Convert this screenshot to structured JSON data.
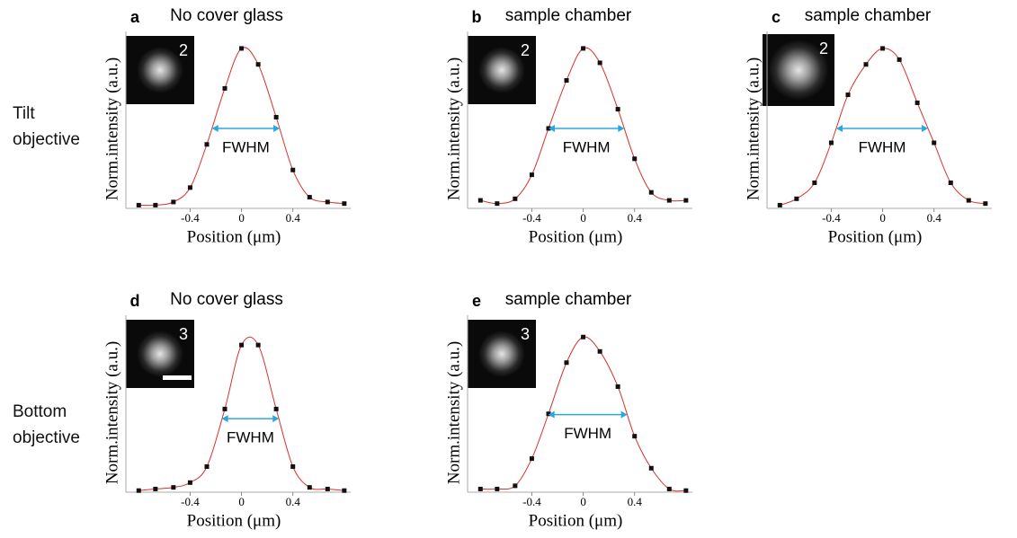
{
  "row_labels": [
    "Tilt objective",
    "Bottom objective"
  ],
  "chart_data": [
    {
      "type": "scatter",
      "panel": "a",
      "title": "No cover glass",
      "inset_label": "2",
      "annotation": "FWHM",
      "x_label": "Position (μm)",
      "y_label": "Norm.intensity (a.u.)",
      "color": "#111111",
      "line_color": "#d9302a",
      "arrow_color": "#2aa7df",
      "xlim": [
        -0.9,
        0.85
      ],
      "ylim": [
        0,
        1.05
      ],
      "xticks": [
        -0.4,
        0,
        0.4
      ],
      "x": [
        -0.8,
        -0.67,
        -0.53,
        -0.4,
        -0.27,
        -0.13,
        0,
        0.13,
        0.27,
        0.4,
        0.53,
        0.67,
        0.8
      ],
      "values": [
        0.02,
        0.02,
        0.04,
        0.13,
        0.4,
        0.75,
        1.0,
        0.9,
        0.57,
        0.24,
        0.07,
        0.04,
        0.03
      ]
    },
    {
      "type": "scatter",
      "panel": "b",
      "title": "sample chamber",
      "inset_label": "2",
      "annotation": "FWHM",
      "x_label": "Position (μm)",
      "y_label": "Norm.intensity (a.u.)",
      "color": "#111111",
      "line_color": "#d9302a",
      "arrow_color": "#2aa7df",
      "xlim": [
        -0.9,
        0.85
      ],
      "ylim": [
        0,
        1.05
      ],
      "xticks": [
        -0.4,
        0,
        0.4
      ],
      "x": [
        -0.8,
        -0.67,
        -0.53,
        -0.4,
        -0.27,
        -0.13,
        0,
        0.13,
        0.27,
        0.4,
        0.53,
        0.67,
        0.8
      ],
      "values": [
        0.05,
        0.03,
        0.06,
        0.21,
        0.5,
        0.8,
        1.0,
        0.91,
        0.62,
        0.31,
        0.1,
        0.05,
        0.05
      ]
    },
    {
      "type": "scatter",
      "panel": "c",
      "title": "sample chamber",
      "inset_label": "2",
      "annotation": "FWHM",
      "x_label": "Position (μm)",
      "y_label": "Norm.intensity (a.u.)",
      "color": "#111111",
      "line_color": "#d9302a",
      "arrow_color": "#2aa7df",
      "xlim": [
        -0.9,
        0.85
      ],
      "ylim": [
        0,
        1.05
      ],
      "xticks": [
        -0.4,
        0,
        0.4
      ],
      "x": [
        -0.8,
        -0.67,
        -0.53,
        -0.4,
        -0.27,
        -0.13,
        0,
        0.13,
        0.27,
        0.4,
        0.53,
        0.67,
        0.8
      ],
      "values": [
        0.02,
        0.06,
        0.16,
        0.41,
        0.71,
        0.9,
        1.0,
        0.93,
        0.66,
        0.41,
        0.16,
        0.05,
        0.03
      ]
    },
    {
      "type": "scatter",
      "panel": "d",
      "title": "No cover glass",
      "inset_label": "3",
      "annotation": "FWHM",
      "x_label": "Position (μm)",
      "y_label": "Norm.intensity (a.u.)",
      "color": "#111111",
      "line_color": "#d9302a",
      "arrow_color": "#2aa7df",
      "xlim": [
        -0.9,
        0.85
      ],
      "ylim": [
        0,
        1.05
      ],
      "xticks": [
        -0.4,
        0,
        0.4
      ],
      "x": [
        -0.8,
        -0.67,
        -0.53,
        -0.4,
        -0.27,
        -0.13,
        0,
        0.13,
        0.27,
        0.4,
        0.53,
        0.67,
        0.8
      ],
      "values": [
        0.01,
        0.02,
        0.03,
        0.06,
        0.16,
        0.52,
        0.92,
        0.92,
        0.52,
        0.16,
        0.03,
        0.02,
        0.01
      ]
    },
    {
      "type": "scatter",
      "panel": "e",
      "title": "sample chamber",
      "inset_label": "3",
      "annotation": "FWHM",
      "x_label": "Position (μm)",
      "y_label": "Norm.intensity (a.u.)",
      "color": "#111111",
      "line_color": "#d9302a",
      "arrow_color": "#2aa7df",
      "xlim": [
        -0.9,
        0.85
      ],
      "ylim": [
        0,
        1.05
      ],
      "xticks": [
        -0.4,
        0,
        0.4
      ],
      "x": [
        -0.8,
        -0.67,
        -0.53,
        -0.4,
        -0.27,
        -0.13,
        0,
        0.13,
        0.27,
        0.4,
        0.53,
        0.67,
        0.8
      ],
      "values": [
        0.02,
        0.02,
        0.04,
        0.21,
        0.49,
        0.81,
        0.97,
        0.88,
        0.66,
        0.35,
        0.15,
        0.02,
        0.01
      ]
    }
  ]
}
